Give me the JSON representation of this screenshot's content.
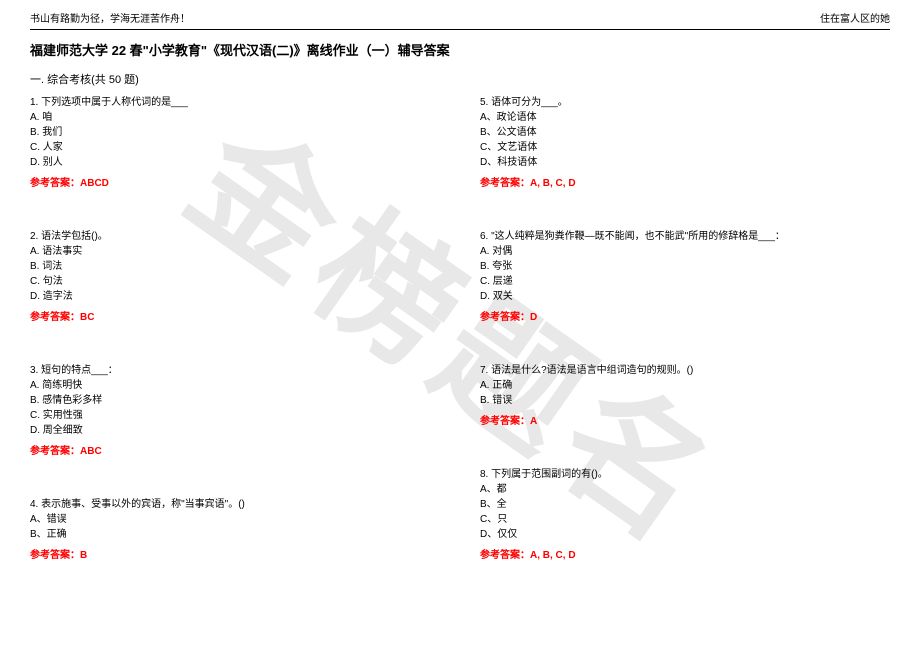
{
  "header": {
    "left": "书山有路勤为径，学海无涯苦作舟！",
    "right": "住在富人区的她"
  },
  "title": "福建师范大学 22 春\"小学教育\"《现代汉语(二)》离线作业（一）辅导答案",
  "section": "一. 综合考核(共 50 题)",
  "watermark": "金榜题名",
  "answer_label": "参考答案：",
  "left_col": [
    {
      "q": "1. 下列选项中属于人称代词的是___",
      "opts": [
        "A. 咱",
        "B. 我们",
        "C. 人家",
        "D. 别人"
      ],
      "ans": "ABCD"
    },
    {
      "q": "2. 语法学包括()。",
      "opts": [
        "A. 语法事实",
        "B. 词法",
        "C. 句法",
        "D. 造字法"
      ],
      "ans": "BC"
    },
    {
      "q": "3. 短句的特点___：",
      "opts": [
        "A. 简练明快",
        "B. 感情色彩多样",
        "C. 实用性强",
        "D. 周全细致"
      ],
      "ans": "ABC"
    },
    {
      "q": "4. 表示施事、受事以外的宾语，称\"当事宾语\"。()",
      "opts": [
        "A、错误",
        "B、正确"
      ],
      "ans": "B"
    }
  ],
  "right_col": [
    {
      "q": "5. 语体可分为___。",
      "opts": [
        "A、政论语体",
        "B、公文语体",
        "C、文艺语体",
        "D、科技语体"
      ],
      "ans": "A, B, C, D"
    },
    {
      "q": "6. \"这人纯粹是狗粪作鞭—既不能闻，也不能武\"所用的修辞格是___：",
      "opts": [
        "A. 对偶",
        "B. 夸张",
        "C. 层递",
        "D. 双关"
      ],
      "ans": "D"
    },
    {
      "q": "7. 语法是什么?语法是语言中组词造句的规则。()",
      "opts": [
        "A. 正确",
        "B. 错误"
      ],
      "ans": "A"
    },
    {
      "q": "8. 下列属于范围副词的有()。",
      "opts": [
        "A、都",
        "B、全",
        "C、只",
        "D、仅仅"
      ],
      "ans": "A, B, C, D"
    }
  ]
}
